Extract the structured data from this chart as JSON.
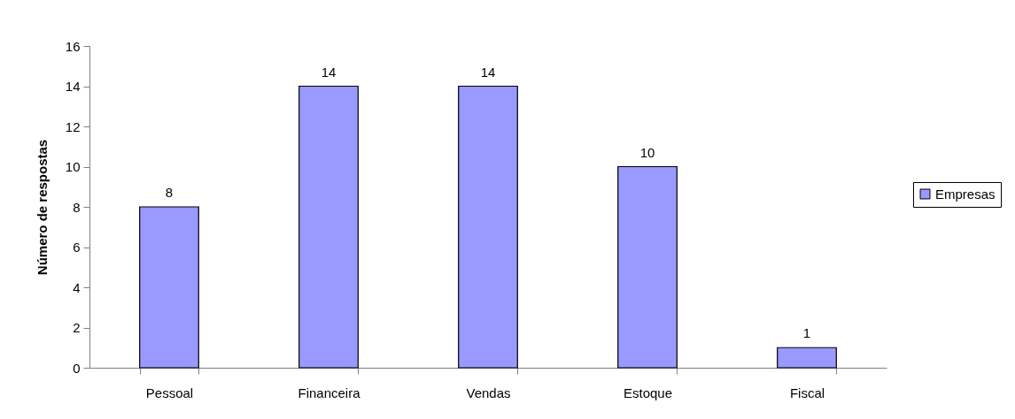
{
  "chart_data": {
    "type": "bar",
    "ylabel": "Número de respostas",
    "categories": [
      "Pessoal",
      "Financeira",
      "Vendas",
      "Estoque",
      "Fiscal"
    ],
    "series": [
      {
        "name": "Empresas",
        "color": "#9999ff",
        "values": [
          8,
          14,
          14,
          10,
          1
        ]
      }
    ],
    "ylim": [
      0,
      16
    ],
    "yticks": [
      0,
      2,
      4,
      6,
      8,
      10,
      12,
      14,
      16
    ],
    "grid": false,
    "legend": "right",
    "data_labels": true
  }
}
